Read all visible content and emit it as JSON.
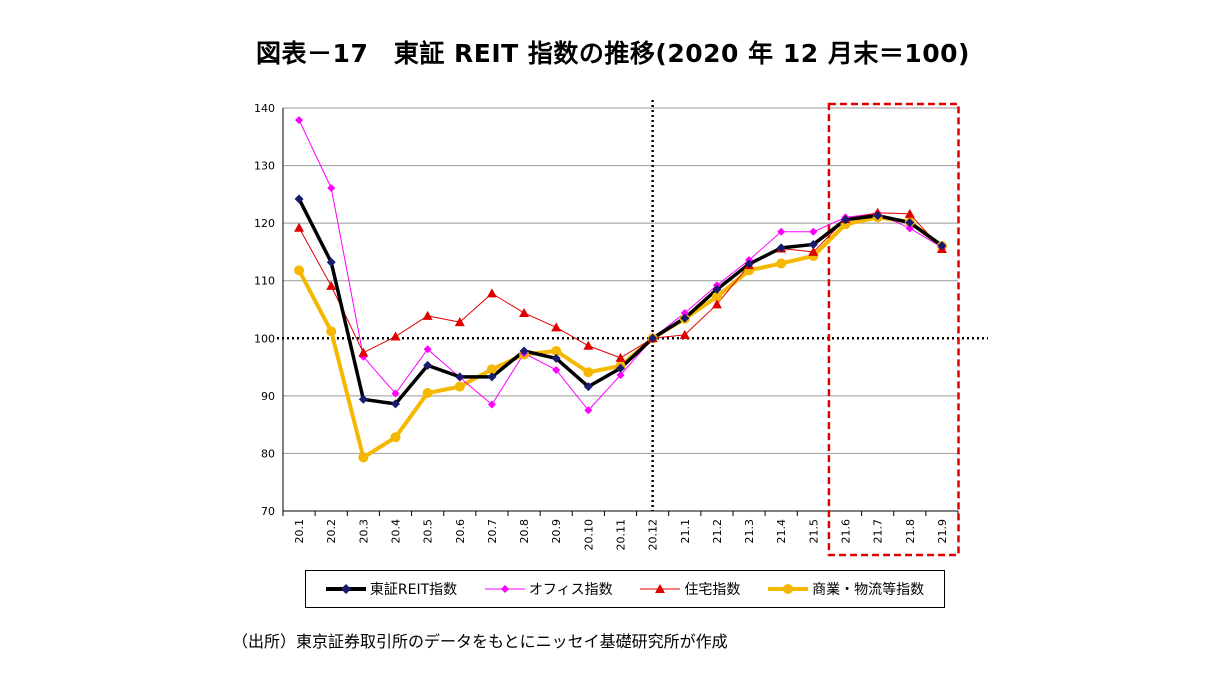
{
  "title": "図表－17　東証 REIT 指数の推移(2020 年 12 月末＝100)",
  "source_note": "（出所）東京証券取引所のデータをもとにニッセイ基礎研究所が作成",
  "colors": {
    "reit": "#000000",
    "reit_marker": "#1a1a6e",
    "office": "#ff00ff",
    "residential": "#e00000",
    "commercial": "#f5b800",
    "highlight_box": "#e00000",
    "grid": "#999999"
  },
  "chart_data": {
    "type": "line",
    "categories": [
      "20.1",
      "20.2",
      "20.3",
      "20.4",
      "20.5",
      "20.6",
      "20.7",
      "20.8",
      "20.9",
      "20.10",
      "20.11",
      "20.12",
      "21.1",
      "21.2",
      "21.3",
      "21.4",
      "21.5",
      "21.6",
      "21.7",
      "21.8",
      "21.9"
    ],
    "y_ticks": [
      "70",
      "80",
      "90",
      "100",
      "110",
      "120",
      "130",
      "140"
    ],
    "ylim": [
      70,
      140
    ],
    "grid": true,
    "reference_line_y": 100,
    "reference_line_x": "20.12",
    "highlight_range": [
      "21.6",
      "21.9"
    ],
    "legend_position": "bottom",
    "series": [
      {
        "name": "東証REIT指数",
        "color_key": "reit",
        "marker": "diamond",
        "values": [
          124.2,
          113.2,
          89.4,
          88.6,
          95.3,
          93.3,
          93.3,
          97.8,
          96.5,
          91.6,
          94.8,
          100,
          103.5,
          108.5,
          112.9,
          115.7,
          116.3,
          120.6,
          121.3,
          120.1,
          116.1
        ]
      },
      {
        "name": "オフィス指数",
        "color_key": "office",
        "marker": "diamond",
        "values": [
          137.9,
          126.1,
          96.8,
          90.4,
          98.1,
          93.2,
          88.5,
          97.4,
          94.5,
          87.5,
          93.6,
          100,
          104.4,
          109.2,
          113.6,
          118.5,
          118.5,
          121.0,
          121.7,
          119.1,
          115.8
        ]
      },
      {
        "name": "住宅指数",
        "color_key": "residential",
        "marker": "triangle",
        "values": [
          119.2,
          109.1,
          97.5,
          100.3,
          103.9,
          102.8,
          107.8,
          104.4,
          101.9,
          98.7,
          96.6,
          100,
          100.6,
          105.9,
          112.7,
          115.6,
          115.0,
          120.7,
          121.8,
          121.6,
          115.5
        ]
      },
      {
        "name": "商業・物流等指数",
        "color_key": "commercial",
        "marker": "circle",
        "values": [
          111.8,
          101.2,
          79.3,
          82.8,
          90.5,
          91.6,
          94.6,
          97.2,
          97.8,
          94.1,
          95.2,
          100,
          103.4,
          107.2,
          111.8,
          113.0,
          114.3,
          119.8,
          121.0,
          120.2,
          116.0
        ]
      }
    ]
  }
}
